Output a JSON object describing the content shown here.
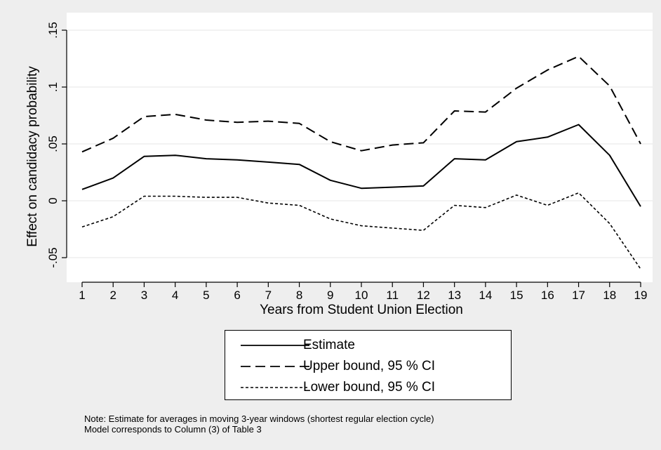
{
  "chart_data": {
    "type": "line",
    "xlabel": "Years from Student Union Election",
    "ylabel": "Effect on candidacy probability",
    "x": [
      1,
      2,
      3,
      4,
      5,
      6,
      7,
      8,
      9,
      10,
      11,
      12,
      13,
      14,
      15,
      16,
      17,
      18,
      19
    ],
    "xlim": [
      1,
      19
    ],
    "ylim": [
      -0.05,
      0.15
    ],
    "yticks": [
      -0.05,
      0,
      0.05,
      0.1,
      0.15
    ],
    "ytick_labels": [
      "-.05",
      "0",
      ".05",
      ".1",
      ".15"
    ],
    "xtick_labels": [
      "1",
      "2",
      "3",
      "4",
      "5",
      "6",
      "7",
      "8",
      "9",
      "10",
      "11",
      "12",
      "13",
      "14",
      "15",
      "16",
      "17",
      "18",
      "19"
    ],
    "grid": "horizontal",
    "series": [
      {
        "name": "Estimate",
        "style": "solid",
        "values": [
          0.01,
          0.02,
          0.039,
          0.04,
          0.037,
          0.036,
          0.034,
          0.032,
          0.018,
          0.011,
          0.012,
          0.013,
          0.037,
          0.036,
          0.052,
          0.056,
          0.067,
          0.04,
          -0.005
        ]
      },
      {
        "name": "Upper bound, 95 % CI",
        "style": "long-dash",
        "values": [
          0.043,
          0.055,
          0.074,
          0.076,
          0.071,
          0.069,
          0.07,
          0.068,
          0.052,
          0.044,
          0.049,
          0.051,
          0.079,
          0.078,
          0.099,
          0.115,
          0.127,
          0.101,
          0.05
        ]
      },
      {
        "name": "Lower bound, 95 % CI",
        "style": "short-dash",
        "values": [
          -0.023,
          -0.014,
          0.004,
          0.004,
          0.003,
          0.003,
          -0.002,
          -0.004,
          -0.016,
          -0.022,
          -0.024,
          -0.026,
          -0.004,
          -0.006,
          0.005,
          -0.004,
          0.007,
          -0.02,
          -0.06
        ]
      }
    ],
    "legend_position": "bottom"
  },
  "note": {
    "line1": "Note: Estimate for averages in moving 3-year windows (shortest regular election cycle)",
    "line2": "Model corresponds to Column (3) of Table 3"
  },
  "colors": {
    "background": "#eeeeee",
    "plot_background": "#ffffff",
    "line": "#000000",
    "grid": "#eeeeee"
  }
}
